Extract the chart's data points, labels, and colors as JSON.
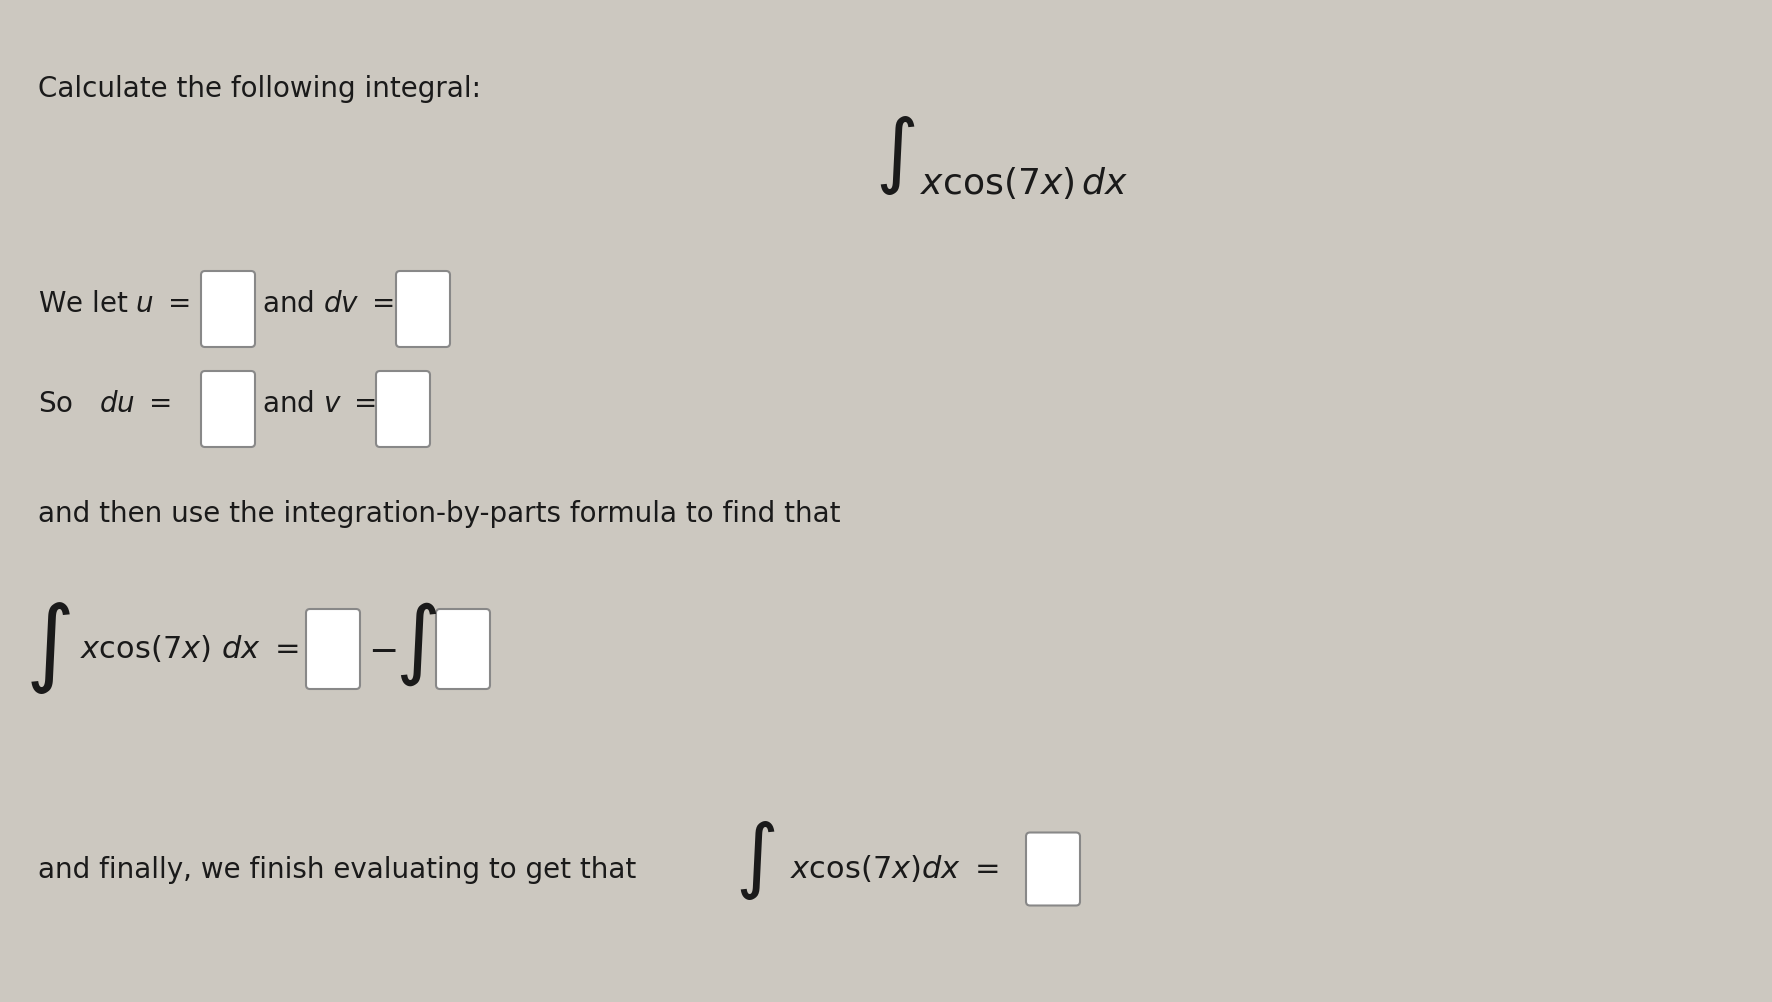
{
  "bg_color": "#ccc8c0",
  "text_color": "#1a1a1a",
  "title": "Calculate the following integral:",
  "box_color": "#ffffff",
  "box_edge_color": "#888888",
  "font_size_title": 20,
  "font_size_body": 20,
  "font_size_math_body": 22,
  "font_size_large_integral": 38,
  "font_size_integral_top": 42
}
